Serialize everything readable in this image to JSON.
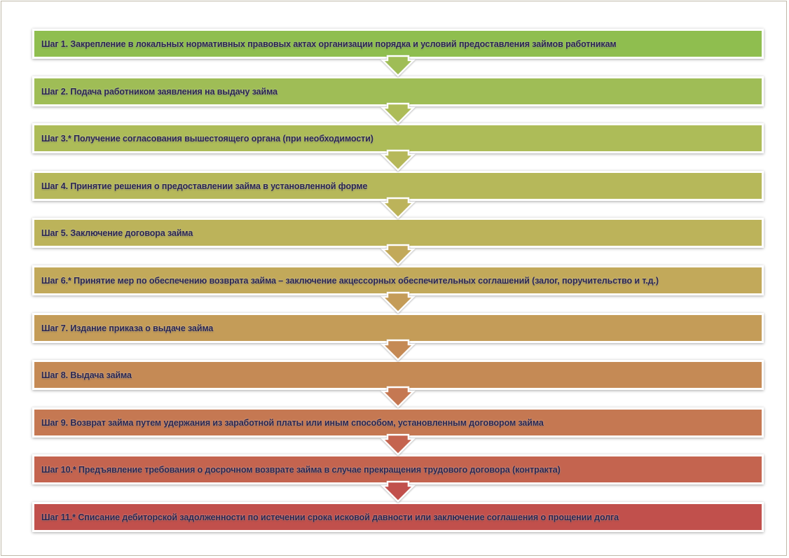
{
  "steps": [
    {
      "label": "Шаг 1. Закрепление в локальных нормативных правовых актах организации порядка и условий предоставления займов работникам",
      "color": "#8fbe4f"
    },
    {
      "label": "Шаг 2. Подача работником заявления на выдачу займа",
      "color": "#9fbd56"
    },
    {
      "label": "Шаг 3.* Получение согласования вышестоящего органа (при необходимости)",
      "color": "#adbc58"
    },
    {
      "label": "Шаг 4. Принятие решения о предоставлении займа в установленной форме",
      "color": "#b6b85a"
    },
    {
      "label": "Шаг 5. Заключение договора займа",
      "color": "#bcb35a"
    },
    {
      "label": "Шаг 6.* Принятие мер по обеспечению возврата займа – заключение акцессорных обеспечительных соглашений (залог, поручительство и т.д.)",
      "color": "#c2a95a"
    },
    {
      "label": "Шаг 7. Издание приказа о выдаче займа",
      "color": "#c49c58"
    },
    {
      "label": "Шаг 8. Выдача займа",
      "color": "#c58a55"
    },
    {
      "label": "Шаг 9. Возврат займа путем удержания из заработной платы или иным способом, установленным договором займа",
      "color": "#c57852"
    },
    {
      "label": "Шаг 10.* Предъявление требования о досрочном возврате займа в случае прекращения трудового договора (контракта)",
      "color": "#c4644f"
    },
    {
      "label": "Шаг 11.* Списание дебиторской задолженности по истечении срока исковой давности или заключение соглашения о прощении долга",
      "color": "#c1504c"
    }
  ]
}
